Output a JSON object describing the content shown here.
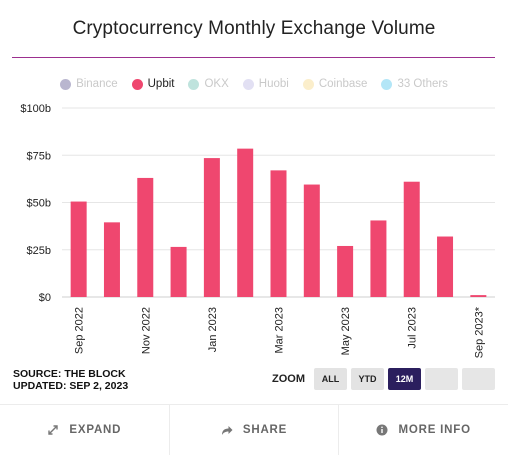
{
  "title": "Cryptocurrency Monthly Exchange Volume",
  "legend": [
    {
      "name": "Binance",
      "color": "#b9b6cf",
      "active": false
    },
    {
      "name": "Upbit",
      "color": "#ef476f",
      "active": true
    },
    {
      "name": "OKX",
      "color": "#bfe3dd",
      "active": false
    },
    {
      "name": "Huobi",
      "color": "#e2e0f3",
      "active": false
    },
    {
      "name": "Coinbase",
      "color": "#fbeecb",
      "active": false
    },
    {
      "name": "33 Others",
      "color": "#b3e6f7",
      "active": false
    }
  ],
  "chart_data": {
    "type": "bar",
    "categories": [
      "Sep 2022",
      "Oct 2022",
      "Nov 2022",
      "Dec 2022",
      "Jan 2023",
      "Feb 2023",
      "Mar 2023",
      "Apr 2023",
      "May 2023",
      "Jun 2023",
      "Jul 2023",
      "Aug 2023",
      "Sep 2023*"
    ],
    "tick_labels": [
      "Sep 2022",
      "",
      "Nov 2022",
      "",
      "Jan 2023",
      "",
      "Mar 2023",
      "",
      "May 2023",
      "",
      "Jul 2023",
      "",
      "Sep 2023*"
    ],
    "series": [
      {
        "name": "Upbit",
        "color": "#ef476f",
        "values": [
          50.5,
          39.5,
          63,
          26.5,
          73.5,
          78.5,
          67,
          59.5,
          27,
          40.5,
          61,
          32,
          1
        ]
      }
    ],
    "ylim": [
      0,
      100
    ],
    "yticks": [
      0,
      25,
      50,
      75,
      100
    ],
    "ytick_labels": [
      "$0",
      "$25b",
      "$50b",
      "$75b",
      "$100b"
    ],
    "grid": true
  },
  "source": {
    "line1": "SOURCE: THE BLOCK",
    "line2": "UPDATED: SEP 2, 2023"
  },
  "zoom": {
    "label": "ZOOM",
    "buttons": [
      "ALL",
      "YTD",
      "12M"
    ],
    "active": "12M"
  },
  "footer": {
    "expand": "EXPAND",
    "share": "SHARE",
    "more_info": "MORE INFO"
  }
}
